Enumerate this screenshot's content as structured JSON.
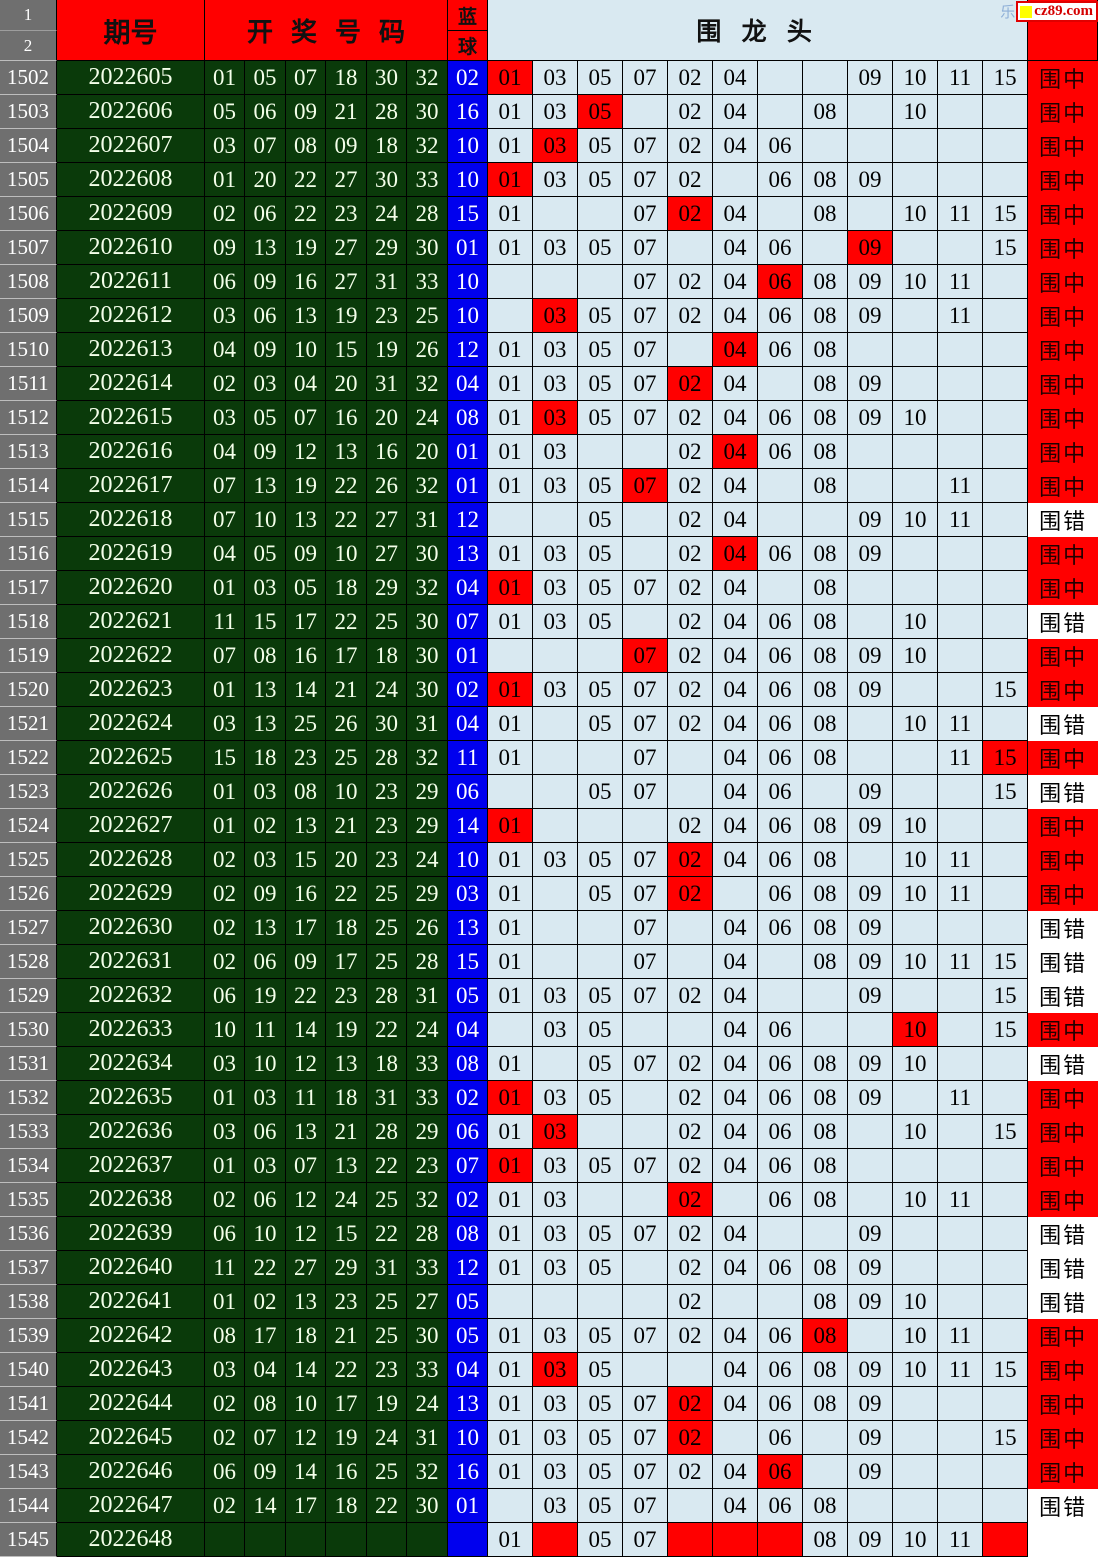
{
  "header": {
    "corner_row1": "1",
    "corner_row2": "2",
    "period_label": "期号",
    "numbers_label": "开奖号码",
    "blue_top": "蓝",
    "blue_bottom": "球",
    "dragon_label": "围 龙 头",
    "watermark": {
      "prefix": "乐",
      "text": "cz89.com"
    }
  },
  "grid_columns": [
    "01",
    "03",
    "05",
    "07",
    "02",
    "04",
    "06",
    "08",
    "09",
    "10",
    "11",
    "15"
  ],
  "results": {
    "hit": "围中",
    "miss": "围错"
  },
  "colors": {
    "header_red": "#ff0000",
    "dark_green": "#0a3a0a",
    "blue_ball": "#0000ee",
    "grid_light_blue": "#d9e9f1",
    "highlight_red": "#ff0000",
    "row_index_gray": "#6f6f6f",
    "hit_bg": "#ff0000",
    "miss_bg": "#ffffff"
  },
  "rows": [
    {
      "row_no": "1502",
      "period": "2022605",
      "reds": [
        "01",
        "05",
        "07",
        "18",
        "30",
        "32"
      ],
      "blue": "02",
      "cells": [
        "01",
        "03",
        "05",
        "07",
        "02",
        "04",
        "",
        "",
        "09",
        "10",
        "11",
        "15"
      ],
      "hl": [
        0
      ],
      "result": "hit"
    },
    {
      "row_no": "1503",
      "period": "2022606",
      "reds": [
        "05",
        "06",
        "09",
        "21",
        "28",
        "30"
      ],
      "blue": "16",
      "cells": [
        "01",
        "03",
        "05",
        "",
        "02",
        "04",
        "",
        "08",
        "",
        "10",
        "",
        ""
      ],
      "hl": [
        2
      ],
      "result": "hit"
    },
    {
      "row_no": "1504",
      "period": "2022607",
      "reds": [
        "03",
        "07",
        "08",
        "09",
        "18",
        "32"
      ],
      "blue": "10",
      "cells": [
        "01",
        "03",
        "05",
        "07",
        "02",
        "04",
        "06",
        "",
        "",
        "",
        "",
        ""
      ],
      "hl": [
        1
      ],
      "result": "hit"
    },
    {
      "row_no": "1505",
      "period": "2022608",
      "reds": [
        "01",
        "20",
        "22",
        "27",
        "30",
        "33"
      ],
      "blue": "10",
      "cells": [
        "01",
        "03",
        "05",
        "07",
        "02",
        "",
        "06",
        "08",
        "09",
        "",
        "",
        ""
      ],
      "hl": [
        0
      ],
      "result": "hit"
    },
    {
      "row_no": "1506",
      "period": "2022609",
      "reds": [
        "02",
        "06",
        "22",
        "23",
        "24",
        "28"
      ],
      "blue": "15",
      "cells": [
        "01",
        "",
        "",
        "07",
        "02",
        "04",
        "",
        "08",
        "",
        "10",
        "11",
        "15"
      ],
      "hl": [
        4
      ],
      "result": "hit"
    },
    {
      "row_no": "1507",
      "period": "2022610",
      "reds": [
        "09",
        "13",
        "19",
        "27",
        "29",
        "30"
      ],
      "blue": "01",
      "cells": [
        "01",
        "03",
        "05",
        "07",
        "",
        "04",
        "06",
        "",
        "09",
        "",
        "",
        "15"
      ],
      "hl": [
        8
      ],
      "result": "hit"
    },
    {
      "row_no": "1508",
      "period": "2022611",
      "reds": [
        "06",
        "09",
        "16",
        "27",
        "31",
        "33"
      ],
      "blue": "10",
      "cells": [
        "",
        "",
        "",
        "07",
        "02",
        "04",
        "06",
        "08",
        "09",
        "10",
        "11",
        ""
      ],
      "hl": [
        6
      ],
      "result": "hit"
    },
    {
      "row_no": "1509",
      "period": "2022612",
      "reds": [
        "03",
        "06",
        "13",
        "19",
        "23",
        "25"
      ],
      "blue": "10",
      "cells": [
        "",
        "03",
        "05",
        "07",
        "02",
        "04",
        "06",
        "08",
        "09",
        "",
        "11",
        ""
      ],
      "hl": [
        1
      ],
      "result": "hit"
    },
    {
      "row_no": "1510",
      "period": "2022613",
      "reds": [
        "04",
        "09",
        "10",
        "15",
        "19",
        "26"
      ],
      "blue": "12",
      "cells": [
        "01",
        "03",
        "05",
        "07",
        "",
        "04",
        "06",
        "08",
        "",
        "",
        "",
        ""
      ],
      "hl": [
        5
      ],
      "result": "hit"
    },
    {
      "row_no": "1511",
      "period": "2022614",
      "reds": [
        "02",
        "03",
        "04",
        "20",
        "31",
        "32"
      ],
      "blue": "04",
      "cells": [
        "01",
        "03",
        "05",
        "07",
        "02",
        "04",
        "",
        "08",
        "09",
        "",
        "",
        ""
      ],
      "hl": [
        4
      ],
      "result": "hit"
    },
    {
      "row_no": "1512",
      "period": "2022615",
      "reds": [
        "03",
        "05",
        "07",
        "16",
        "20",
        "24"
      ],
      "blue": "08",
      "cells": [
        "01",
        "03",
        "05",
        "07",
        "02",
        "04",
        "06",
        "08",
        "09",
        "10",
        "",
        ""
      ],
      "hl": [
        1
      ],
      "result": "hit"
    },
    {
      "row_no": "1513",
      "period": "2022616",
      "reds": [
        "04",
        "09",
        "12",
        "13",
        "16",
        "20"
      ],
      "blue": "01",
      "cells": [
        "01",
        "03",
        "",
        "",
        "02",
        "04",
        "06",
        "08",
        "",
        "",
        "",
        ""
      ],
      "hl": [
        5
      ],
      "result": "hit"
    },
    {
      "row_no": "1514",
      "period": "2022617",
      "reds": [
        "07",
        "13",
        "19",
        "22",
        "26",
        "32"
      ],
      "blue": "01",
      "cells": [
        "01",
        "03",
        "05",
        "07",
        "02",
        "04",
        "",
        "08",
        "",
        "",
        "11",
        ""
      ],
      "hl": [
        3
      ],
      "result": "hit"
    },
    {
      "row_no": "1515",
      "period": "2022618",
      "reds": [
        "07",
        "10",
        "13",
        "22",
        "27",
        "31"
      ],
      "blue": "12",
      "cells": [
        "",
        "",
        "05",
        "",
        "02",
        "04",
        "",
        "",
        "09",
        "10",
        "11",
        ""
      ],
      "hl": [],
      "result": "miss"
    },
    {
      "row_no": "1516",
      "period": "2022619",
      "reds": [
        "04",
        "05",
        "09",
        "10",
        "27",
        "30"
      ],
      "blue": "13",
      "cells": [
        "01",
        "03",
        "05",
        "",
        "02",
        "04",
        "06",
        "08",
        "09",
        "",
        "",
        ""
      ],
      "hl": [
        5
      ],
      "result": "hit"
    },
    {
      "row_no": "1517",
      "period": "2022620",
      "reds": [
        "01",
        "03",
        "05",
        "18",
        "29",
        "32"
      ],
      "blue": "04",
      "cells": [
        "01",
        "03",
        "05",
        "07",
        "02",
        "04",
        "",
        "08",
        "",
        "",
        "",
        ""
      ],
      "hl": [
        0
      ],
      "result": "hit"
    },
    {
      "row_no": "1518",
      "period": "2022621",
      "reds": [
        "11",
        "15",
        "17",
        "22",
        "25",
        "30"
      ],
      "blue": "07",
      "cells": [
        "01",
        "03",
        "05",
        "",
        "02",
        "04",
        "06",
        "08",
        "",
        "10",
        "",
        ""
      ],
      "hl": [],
      "result": "miss"
    },
    {
      "row_no": "1519",
      "period": "2022622",
      "reds": [
        "07",
        "08",
        "16",
        "17",
        "18",
        "30"
      ],
      "blue": "01",
      "cells": [
        "",
        "",
        "",
        "07",
        "02",
        "04",
        "06",
        "08",
        "09",
        "10",
        "",
        ""
      ],
      "hl": [
        3
      ],
      "result": "hit"
    },
    {
      "row_no": "1520",
      "period": "2022623",
      "reds": [
        "01",
        "13",
        "14",
        "21",
        "24",
        "30"
      ],
      "blue": "02",
      "cells": [
        "01",
        "03",
        "05",
        "07",
        "02",
        "04",
        "06",
        "08",
        "09",
        "",
        "",
        "15"
      ],
      "hl": [
        0
      ],
      "result": "hit"
    },
    {
      "row_no": "1521",
      "period": "2022624",
      "reds": [
        "03",
        "13",
        "25",
        "26",
        "30",
        "31"
      ],
      "blue": "04",
      "cells": [
        "01",
        "",
        "05",
        "07",
        "02",
        "04",
        "06",
        "08",
        "",
        "10",
        "11",
        ""
      ],
      "hl": [],
      "result": "miss"
    },
    {
      "row_no": "1522",
      "period": "2022625",
      "reds": [
        "15",
        "18",
        "23",
        "25",
        "28",
        "32"
      ],
      "blue": "11",
      "cells": [
        "01",
        "",
        "",
        "07",
        "",
        "04",
        "06",
        "08",
        "",
        "",
        "11",
        "15"
      ],
      "hl": [
        11
      ],
      "result": "hit"
    },
    {
      "row_no": "1523",
      "period": "2022626",
      "reds": [
        "01",
        "03",
        "08",
        "10",
        "23",
        "29"
      ],
      "blue": "06",
      "cells": [
        "",
        "",
        "05",
        "07",
        "",
        "04",
        "06",
        "",
        "09",
        "",
        "",
        "15"
      ],
      "hl": [],
      "result": "miss"
    },
    {
      "row_no": "1524",
      "period": "2022627",
      "reds": [
        "01",
        "02",
        "13",
        "21",
        "23",
        "29"
      ],
      "blue": "14",
      "cells": [
        "01",
        "",
        "",
        "",
        "02",
        "04",
        "06",
        "08",
        "09",
        "10",
        "",
        ""
      ],
      "hl": [
        0
      ],
      "result": "hit"
    },
    {
      "row_no": "1525",
      "period": "2022628",
      "reds": [
        "02",
        "03",
        "15",
        "20",
        "23",
        "24"
      ],
      "blue": "10",
      "cells": [
        "01",
        "03",
        "05",
        "07",
        "02",
        "04",
        "06",
        "08",
        "",
        "10",
        "11",
        ""
      ],
      "hl": [
        4
      ],
      "result": "hit"
    },
    {
      "row_no": "1526",
      "period": "2022629",
      "reds": [
        "02",
        "09",
        "16",
        "22",
        "25",
        "29"
      ],
      "blue": "03",
      "cells": [
        "01",
        "",
        "05",
        "07",
        "02",
        "",
        "06",
        "08",
        "09",
        "10",
        "11",
        ""
      ],
      "hl": [
        4
      ],
      "result": "hit"
    },
    {
      "row_no": "1527",
      "period": "2022630",
      "reds": [
        "02",
        "13",
        "17",
        "18",
        "25",
        "26"
      ],
      "blue": "13",
      "cells": [
        "01",
        "",
        "",
        "07",
        "",
        "04",
        "06",
        "08",
        "09",
        "",
        "",
        ""
      ],
      "hl": [],
      "result": "miss"
    },
    {
      "row_no": "1528",
      "period": "2022631",
      "reds": [
        "02",
        "06",
        "09",
        "17",
        "25",
        "28"
      ],
      "blue": "15",
      "cells": [
        "01",
        "",
        "",
        "07",
        "",
        "04",
        "",
        "08",
        "09",
        "10",
        "11",
        "15"
      ],
      "hl": [],
      "result": "miss"
    },
    {
      "row_no": "1529",
      "period": "2022632",
      "reds": [
        "06",
        "19",
        "22",
        "23",
        "28",
        "31"
      ],
      "blue": "05",
      "cells": [
        "01",
        "03",
        "05",
        "07",
        "02",
        "04",
        "",
        "",
        "09",
        "",
        "",
        "15"
      ],
      "hl": [],
      "result": "miss"
    },
    {
      "row_no": "1530",
      "period": "2022633",
      "reds": [
        "10",
        "11",
        "14",
        "19",
        "22",
        "24"
      ],
      "blue": "04",
      "cells": [
        "",
        "03",
        "05",
        "",
        "",
        "04",
        "06",
        "",
        "",
        "10",
        "",
        "15"
      ],
      "hl": [
        9
      ],
      "result": "hit"
    },
    {
      "row_no": "1531",
      "period": "2022634",
      "reds": [
        "03",
        "10",
        "12",
        "13",
        "18",
        "33"
      ],
      "blue": "08",
      "cells": [
        "01",
        "",
        "05",
        "07",
        "02",
        "04",
        "06",
        "08",
        "09",
        "10",
        "",
        ""
      ],
      "hl": [],
      "result": "miss"
    },
    {
      "row_no": "1532",
      "period": "2022635",
      "reds": [
        "01",
        "03",
        "11",
        "18",
        "31",
        "33"
      ],
      "blue": "02",
      "cells": [
        "01",
        "03",
        "05",
        "",
        "02",
        "04",
        "06",
        "08",
        "09",
        "",
        "11",
        ""
      ],
      "hl": [
        0
      ],
      "result": "hit"
    },
    {
      "row_no": "1533",
      "period": "2022636",
      "reds": [
        "03",
        "06",
        "13",
        "21",
        "28",
        "29"
      ],
      "blue": "06",
      "cells": [
        "01",
        "03",
        "",
        "",
        "02",
        "04",
        "06",
        "08",
        "",
        "10",
        "",
        "15"
      ],
      "hl": [
        1
      ],
      "result": "hit"
    },
    {
      "row_no": "1534",
      "period": "2022637",
      "reds": [
        "01",
        "03",
        "07",
        "13",
        "22",
        "23"
      ],
      "blue": "07",
      "cells": [
        "01",
        "03",
        "05",
        "07",
        "02",
        "04",
        "06",
        "08",
        "",
        "",
        "",
        ""
      ],
      "hl": [
        0
      ],
      "result": "hit"
    },
    {
      "row_no": "1535",
      "period": "2022638",
      "reds": [
        "02",
        "06",
        "12",
        "24",
        "25",
        "32"
      ],
      "blue": "02",
      "cells": [
        "01",
        "03",
        "",
        "",
        "02",
        "",
        "06",
        "08",
        "",
        "10",
        "11",
        ""
      ],
      "hl": [
        4
      ],
      "result": "hit"
    },
    {
      "row_no": "1536",
      "period": "2022639",
      "reds": [
        "06",
        "10",
        "12",
        "15",
        "22",
        "28"
      ],
      "blue": "08",
      "cells": [
        "01",
        "03",
        "05",
        "07",
        "02",
        "04",
        "",
        "",
        "09",
        "",
        "",
        ""
      ],
      "hl": [],
      "result": "miss"
    },
    {
      "row_no": "1537",
      "period": "2022640",
      "reds": [
        "11",
        "22",
        "27",
        "29",
        "31",
        "33"
      ],
      "blue": "12",
      "cells": [
        "01",
        "03",
        "05",
        "",
        "02",
        "04",
        "06",
        "08",
        "09",
        "",
        "",
        ""
      ],
      "hl": [],
      "result": "miss"
    },
    {
      "row_no": "1538",
      "period": "2022641",
      "reds": [
        "01",
        "02",
        "13",
        "23",
        "25",
        "27"
      ],
      "blue": "05",
      "cells": [
        "",
        "",
        "",
        "",
        "02",
        "",
        "",
        "08",
        "09",
        "10",
        "",
        ""
      ],
      "hl": [],
      "result": "miss"
    },
    {
      "row_no": "1539",
      "period": "2022642",
      "reds": [
        "08",
        "17",
        "18",
        "21",
        "25",
        "30"
      ],
      "blue": "05",
      "cells": [
        "01",
        "03",
        "05",
        "07",
        "02",
        "04",
        "06",
        "08",
        "",
        "10",
        "11",
        ""
      ],
      "hl": [
        7
      ],
      "result": "hit"
    },
    {
      "row_no": "1540",
      "period": "2022643",
      "reds": [
        "03",
        "04",
        "14",
        "22",
        "23",
        "33"
      ],
      "blue": "04",
      "cells": [
        "01",
        "03",
        "05",
        "",
        "",
        "04",
        "06",
        "08",
        "09",
        "10",
        "11",
        "15"
      ],
      "hl": [
        1
      ],
      "result": "hit"
    },
    {
      "row_no": "1541",
      "period": "2022644",
      "reds": [
        "02",
        "08",
        "10",
        "17",
        "19",
        "24"
      ],
      "blue": "13",
      "cells": [
        "01",
        "03",
        "05",
        "07",
        "02",
        "04",
        "06",
        "08",
        "09",
        "",
        "",
        ""
      ],
      "hl": [
        4
      ],
      "result": "hit"
    },
    {
      "row_no": "1542",
      "period": "2022645",
      "reds": [
        "02",
        "07",
        "12",
        "19",
        "24",
        "31"
      ],
      "blue": "10",
      "cells": [
        "01",
        "03",
        "05",
        "07",
        "02",
        "",
        "06",
        "",
        "09",
        "",
        "",
        "15"
      ],
      "hl": [
        4
      ],
      "result": "hit"
    },
    {
      "row_no": "1543",
      "period": "2022646",
      "reds": [
        "06",
        "09",
        "14",
        "16",
        "25",
        "32"
      ],
      "blue": "16",
      "cells": [
        "01",
        "03",
        "05",
        "07",
        "02",
        "04",
        "06",
        "",
        "09",
        "",
        "",
        ""
      ],
      "hl": [
        6
      ],
      "result": "hit"
    },
    {
      "row_no": "1544",
      "period": "2022647",
      "reds": [
        "02",
        "14",
        "17",
        "18",
        "22",
        "30"
      ],
      "blue": "01",
      "cells": [
        "",
        "03",
        "05",
        "07",
        "",
        "04",
        "06",
        "08",
        "",
        "",
        "",
        ""
      ],
      "hl": [],
      "result": "miss"
    },
    {
      "row_no": "1545",
      "period": "2022648",
      "reds": [
        "",
        "",
        "",
        "",
        "",
        ""
      ],
      "blue": "",
      "cells": [
        "01",
        "",
        "05",
        "07",
        "",
        "",
        "",
        "08",
        "09",
        "10",
        "11",
        ""
      ],
      "hl": [
        1,
        4,
        5,
        6,
        11
      ],
      "result": ""
    }
  ]
}
